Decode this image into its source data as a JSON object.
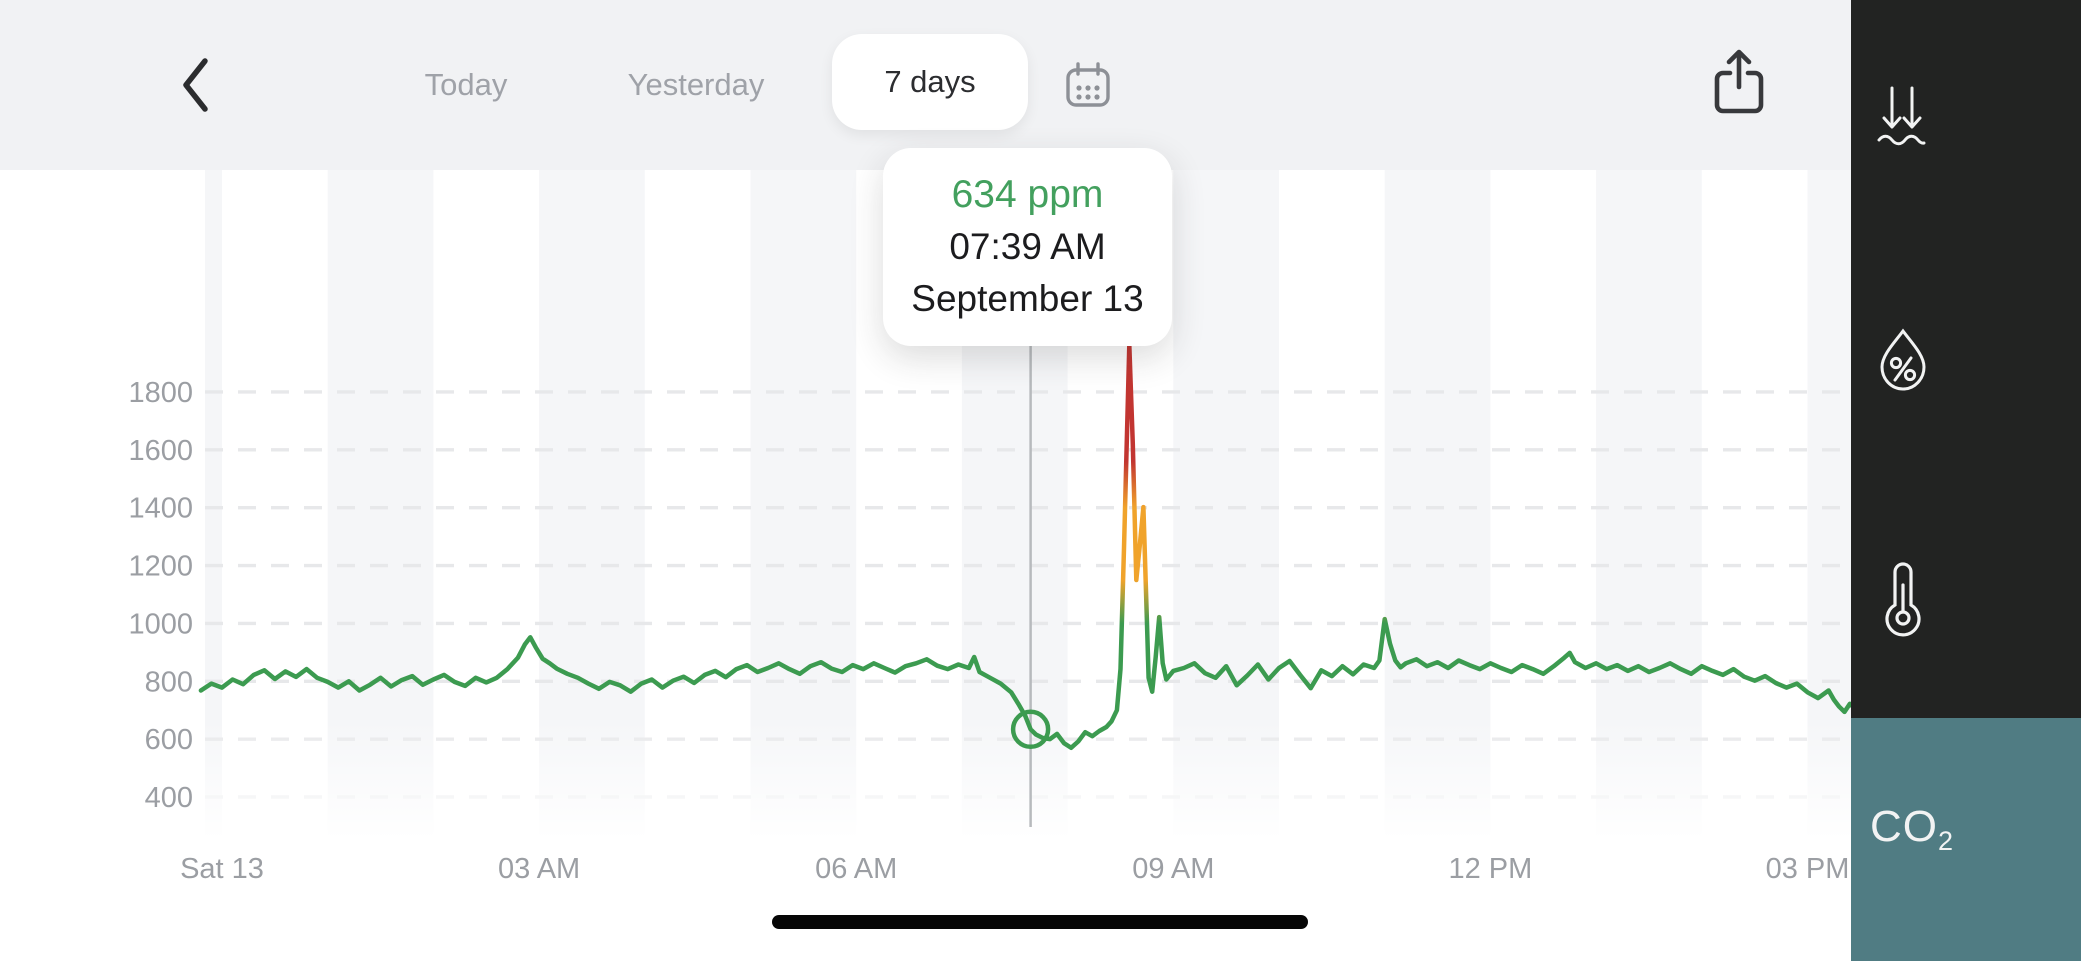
{
  "header": {
    "tabs": [
      {
        "label": "Today",
        "active": false
      },
      {
        "label": "Yesterday",
        "active": false
      },
      {
        "label": "7 days",
        "active": true
      }
    ]
  },
  "tooltip": {
    "value": "634 ppm",
    "time": "07:39 AM",
    "date": "September 13"
  },
  "sidebar": {
    "items": [
      {
        "name": "pressure",
        "active": false
      },
      {
        "name": "humidity",
        "active": false
      },
      {
        "name": "temperature",
        "active": false
      },
      {
        "name": "co2",
        "label_main": "CO",
        "label_sub": "2",
        "active": true
      }
    ],
    "active_color": "#507c83",
    "bg_color": "#222322"
  },
  "chart_data": {
    "type": "line",
    "title": "CO2 concentration, 7 days view, Saturday September 13",
    "ylabel": "ppm",
    "ylim": [
      400,
      1800
    ],
    "y_ticks": [
      400,
      600,
      800,
      1000,
      1200,
      1400,
      1600,
      1800
    ],
    "x_unit": "minutes_since_midnight",
    "x_ticks": [
      {
        "label": "Sat 13",
        "t": 0
      },
      {
        "label": "03 AM",
        "t": 180
      },
      {
        "label": "06 AM",
        "t": 360
      },
      {
        "label": "09 AM",
        "t": 540
      },
      {
        "label": "12 PM",
        "t": 720
      },
      {
        "label": "03 PM",
        "t": 900
      }
    ],
    "grid": "dashed-horizontal",
    "hour_bands": true,
    "selected_point": {
      "t": 459,
      "value": 634,
      "time": "07:39 AM",
      "date": "September 13"
    },
    "series": [
      {
        "name": "CO2",
        "unit": "ppm",
        "color_zones": [
          {
            "upto": 1000,
            "color": "#3c9b50"
          },
          {
            "upto": 1400,
            "color": "#f0a32b"
          },
          {
            "upto": 2000,
            "color": "#c23531"
          }
        ],
        "points": [
          [
            -12,
            768
          ],
          [
            -6,
            792
          ],
          [
            0,
            778
          ],
          [
            6,
            806
          ],
          [
            12,
            790
          ],
          [
            18,
            822
          ],
          [
            24,
            838
          ],
          [
            30,
            808
          ],
          [
            36,
            834
          ],
          [
            42,
            815
          ],
          [
            48,
            842
          ],
          [
            54,
            812
          ],
          [
            60,
            798
          ],
          [
            66,
            778
          ],
          [
            72,
            800
          ],
          [
            78,
            768
          ],
          [
            84,
            788
          ],
          [
            90,
            812
          ],
          [
            96,
            782
          ],
          [
            102,
            804
          ],
          [
            108,
            818
          ],
          [
            114,
            788
          ],
          [
            120,
            806
          ],
          [
            126,
            822
          ],
          [
            132,
            798
          ],
          [
            138,
            784
          ],
          [
            144,
            812
          ],
          [
            150,
            796
          ],
          [
            156,
            812
          ],
          [
            162,
            842
          ],
          [
            168,
            882
          ],
          [
            172,
            928
          ],
          [
            175,
            952
          ],
          [
            178,
            918
          ],
          [
            182,
            878
          ],
          [
            186,
            862
          ],
          [
            190,
            844
          ],
          [
            196,
            826
          ],
          [
            202,
            812
          ],
          [
            208,
            792
          ],
          [
            214,
            774
          ],
          [
            220,
            798
          ],
          [
            226,
            786
          ],
          [
            232,
            764
          ],
          [
            238,
            792
          ],
          [
            244,
            806
          ],
          [
            250,
            778
          ],
          [
            256,
            802
          ],
          [
            262,
            816
          ],
          [
            268,
            794
          ],
          [
            274,
            822
          ],
          [
            280,
            836
          ],
          [
            286,
            814
          ],
          [
            292,
            842
          ],
          [
            298,
            856
          ],
          [
            304,
            832
          ],
          [
            310,
            846
          ],
          [
            316,
            862
          ],
          [
            322,
            842
          ],
          [
            328,
            826
          ],
          [
            334,
            852
          ],
          [
            340,
            866
          ],
          [
            346,
            844
          ],
          [
            352,
            832
          ],
          [
            358,
            856
          ],
          [
            364,
            842
          ],
          [
            370,
            862
          ],
          [
            376,
            846
          ],
          [
            382,
            830
          ],
          [
            388,
            852
          ],
          [
            394,
            862
          ],
          [
            400,
            876
          ],
          [
            406,
            854
          ],
          [
            412,
            842
          ],
          [
            418,
            858
          ],
          [
            424,
            846
          ],
          [
            427,
            884
          ],
          [
            430,
            832
          ],
          [
            436,
            812
          ],
          [
            442,
            792
          ],
          [
            448,
            762
          ],
          [
            452,
            722
          ],
          [
            456,
            680
          ],
          [
            459,
            634
          ],
          [
            462,
            616
          ],
          [
            466,
            604
          ],
          [
            470,
            600
          ],
          [
            474,
            618
          ],
          [
            478,
            586
          ],
          [
            482,
            570
          ],
          [
            486,
            592
          ],
          [
            490,
            624
          ],
          [
            494,
            610
          ],
          [
            498,
            628
          ],
          [
            502,
            642
          ],
          [
            505,
            662
          ],
          [
            508,
            700
          ],
          [
            510,
            842
          ],
          [
            512,
            1260
          ],
          [
            515,
            1962
          ],
          [
            517,
            1620
          ],
          [
            519,
            1150
          ],
          [
            521,
            1270
          ],
          [
            523,
            1402
          ],
          [
            525,
            1010
          ],
          [
            526,
            812
          ],
          [
            528,
            764
          ],
          [
            530,
            884
          ],
          [
            532,
            1022
          ],
          [
            534,
            862
          ],
          [
            536,
            806
          ],
          [
            540,
            836
          ],
          [
            546,
            846
          ],
          [
            552,
            862
          ],
          [
            558,
            828
          ],
          [
            564,
            812
          ],
          [
            570,
            852
          ],
          [
            576,
            786
          ],
          [
            582,
            820
          ],
          [
            588,
            858
          ],
          [
            594,
            806
          ],
          [
            600,
            846
          ],
          [
            606,
            870
          ],
          [
            612,
            822
          ],
          [
            618,
            776
          ],
          [
            624,
            838
          ],
          [
            630,
            818
          ],
          [
            636,
            852
          ],
          [
            642,
            824
          ],
          [
            648,
            858
          ],
          [
            654,
            846
          ],
          [
            657,
            872
          ],
          [
            660,
            1015
          ],
          [
            663,
            930
          ],
          [
            666,
            872
          ],
          [
            669,
            848
          ],
          [
            672,
            862
          ],
          [
            678,
            876
          ],
          [
            684,
            852
          ],
          [
            690,
            866
          ],
          [
            696,
            846
          ],
          [
            702,
            872
          ],
          [
            708,
            856
          ],
          [
            714,
            842
          ],
          [
            720,
            862
          ],
          [
            726,
            846
          ],
          [
            732,
            832
          ],
          [
            738,
            856
          ],
          [
            744,
            842
          ],
          [
            750,
            826
          ],
          [
            756,
            852
          ],
          [
            762,
            882
          ],
          [
            765,
            898
          ],
          [
            768,
            866
          ],
          [
            774,
            846
          ],
          [
            780,
            862
          ],
          [
            786,
            842
          ],
          [
            792,
            856
          ],
          [
            798,
            836
          ],
          [
            804,
            852
          ],
          [
            810,
            832
          ],
          [
            816,
            846
          ],
          [
            822,
            862
          ],
          [
            828,
            842
          ],
          [
            834,
            826
          ],
          [
            840,
            852
          ],
          [
            846,
            836
          ],
          [
            852,
            822
          ],
          [
            858,
            842
          ],
          [
            864,
            816
          ],
          [
            870,
            802
          ],
          [
            876,
            818
          ],
          [
            882,
            794
          ],
          [
            888,
            778
          ],
          [
            894,
            792
          ],
          [
            900,
            762
          ],
          [
            906,
            742
          ],
          [
            912,
            768
          ],
          [
            915,
            736
          ],
          [
            918,
            712
          ],
          [
            921,
            694
          ],
          [
            924,
            722
          ],
          [
            926,
            712
          ]
        ]
      }
    ]
  }
}
